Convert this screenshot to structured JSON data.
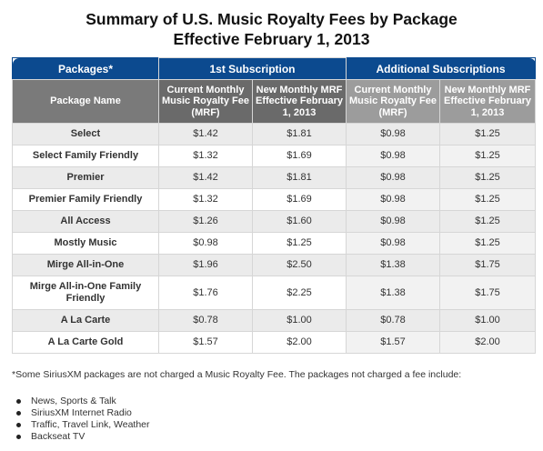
{
  "title": {
    "line1": "Summary of U.S. Music Royalty Fees by Package",
    "line2": "Effective February 1, 2013"
  },
  "table": {
    "group_headers": {
      "packages": "Packages*",
      "first": "1st Subscription",
      "additional": "Additional Subscriptions"
    },
    "columns": {
      "name": "Package Name",
      "first_current": "Current Monthly Music Royalty Fee (MRF)",
      "first_new": "New Monthly MRF Effective February 1, 2013",
      "add_current": "Current Monthly Music Royalty Fee (MRF)",
      "add_new": "New Monthly MRF Effective February 1, 2013"
    },
    "rows": [
      {
        "name": "Select",
        "first_current": "$1.42",
        "first_new": "$1.81",
        "add_current": "$0.98",
        "add_new": "$1.25"
      },
      {
        "name": "Select Family Friendly",
        "first_current": "$1.32",
        "first_new": "$1.69",
        "add_current": "$0.98",
        "add_new": "$1.25"
      },
      {
        "name": "Premier",
        "first_current": "$1.42",
        "first_new": "$1.81",
        "add_current": "$0.98",
        "add_new": "$1.25"
      },
      {
        "name": "Premier Family Friendly",
        "first_current": "$1.32",
        "first_new": "$1.69",
        "add_current": "$0.98",
        "add_new": "$1.25"
      },
      {
        "name": "All Access",
        "first_current": "$1.26",
        "first_new": "$1.60",
        "add_current": "$0.98",
        "add_new": "$1.25"
      },
      {
        "name": "Mostly Music",
        "first_current": "$0.98",
        "first_new": "$1.25",
        "add_current": "$0.98",
        "add_new": "$1.25"
      },
      {
        "name": "Mirge All-in-One",
        "first_current": "$1.96",
        "first_new": "$2.50",
        "add_current": "$1.38",
        "add_new": "$1.75"
      },
      {
        "name": "Mirge All-in-One Family Friendly",
        "first_current": "$1.76",
        "first_new": "$2.25",
        "add_current": "$1.38",
        "add_new": "$1.75"
      },
      {
        "name": "A La Carte",
        "first_current": "$0.78",
        "first_new": "$1.00",
        "add_current": "$0.78",
        "add_new": "$1.00"
      },
      {
        "name": "A La Carte Gold",
        "first_current": "$1.57",
        "first_new": "$2.00",
        "add_current": "$1.57",
        "add_new": "$2.00"
      }
    ]
  },
  "footnote": "*Some SiriusXM packages are not charged a Music Royalty Fee. The packages not charged a fee include:",
  "exempt_packages": [
    "News, Sports & Talk",
    "SiriusXM Internet Radio",
    "Traffic, Travel Link, Weather",
    "Backseat TV"
  ],
  "colors": {
    "header_blue": "#0c4a8f",
    "sub_header_dark": "#6a6a6a",
    "sub_header_light": "#9c9c9c",
    "row_shade": "#ebebeb"
  }
}
